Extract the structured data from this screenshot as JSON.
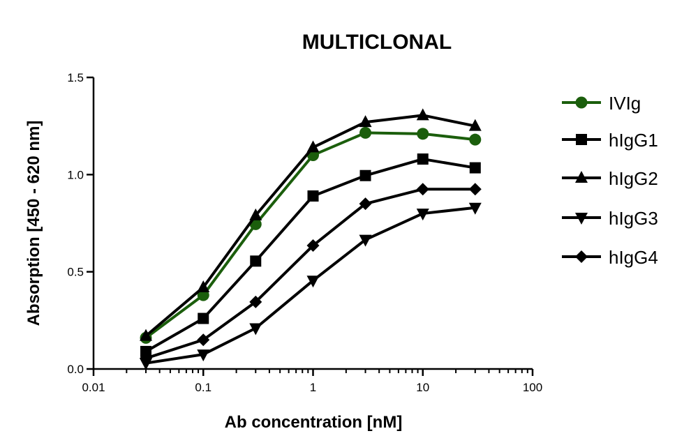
{
  "chart_data": {
    "type": "line",
    "title": "MULTICLONAL",
    "xlabel": "Ab concentration [nM]",
    "ylabel": "Absorption [450 - 620 nm]",
    "xscale": "log",
    "xlim": [
      0.01,
      100
    ],
    "ylim": [
      0,
      1.5
    ],
    "xticks": [
      0.01,
      0.1,
      1,
      10,
      100
    ],
    "xtick_labels": [
      "0.01",
      "0.1",
      "1",
      "10",
      "100"
    ],
    "yticks": [
      0,
      0.5,
      1.0,
      1.5
    ],
    "ytick_labels": [
      "0.0",
      "0.5",
      "1.0",
      "1.5"
    ],
    "legend_position": "right",
    "grid": false,
    "x": [
      0.03,
      0.1,
      0.3,
      1,
      3,
      10,
      30
    ],
    "series": [
      {
        "name": "IVIg",
        "marker": "circle",
        "color": "#1b5e0c",
        "values": [
          0.16,
          0.38,
          0.745,
          1.1,
          1.215,
          1.21,
          1.18
        ]
      },
      {
        "name": "hIgG1",
        "marker": "square",
        "color": "#000000",
        "values": [
          0.09,
          0.26,
          0.555,
          0.89,
          0.995,
          1.08,
          1.035
        ]
      },
      {
        "name": "hIgG2",
        "marker": "triangle-up",
        "color": "#000000",
        "values": [
          0.17,
          0.42,
          0.79,
          1.14,
          1.27,
          1.305,
          1.25
        ]
      },
      {
        "name": "hIgG3",
        "marker": "triangle-down",
        "color": "#000000",
        "values": [
          0.03,
          0.075,
          0.21,
          0.455,
          0.665,
          0.8,
          0.83
        ]
      },
      {
        "name": "hIgG4",
        "marker": "diamond",
        "color": "#000000",
        "values": [
          0.055,
          0.15,
          0.345,
          0.635,
          0.85,
          0.925,
          0.925
        ]
      }
    ]
  }
}
